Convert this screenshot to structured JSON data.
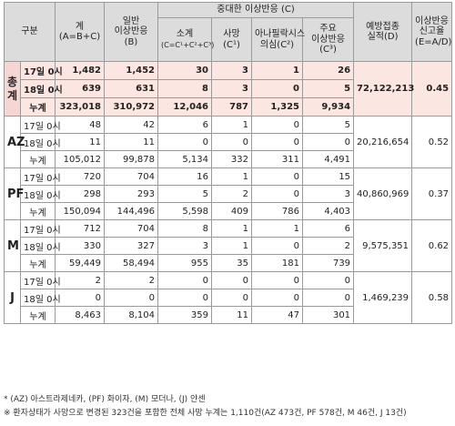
{
  "header": {
    "category": "구분",
    "total_label": "계",
    "total_formula": "(A=B+C)",
    "general_label": "일반",
    "general_label2": "이상반응",
    "general_code": "(B)",
    "serious_label": "중대한 이상반응 (C)",
    "subtotal": "소계",
    "subtotal_formula": "(C=C¹+C²+C³)",
    "death": "사망",
    "death_code": "(C¹)",
    "anaphylaxis": "아나필락시스",
    "anaphylaxis2": "의심(C²)",
    "major": "주요",
    "major2": "이상반응",
    "major_code": "(C³)",
    "vaccinated": "예방접종",
    "vaccinated2": "실적(D)",
    "rate": "이상반응",
    "rate2": "신고율",
    "rate_formula": "(E=A/D)"
  },
  "row_labels": {
    "d17": "17일 0시",
    "d18": "18일 0시",
    "cum": "누계"
  },
  "groups": [
    {
      "name": "총계",
      "vaccinated": "72,122,213",
      "rate": "0.45",
      "rows": [
        [
          "1,482",
          "1,452",
          "30",
          "3",
          "1",
          "26"
        ],
        [
          "639",
          "631",
          "8",
          "3",
          "0",
          "5"
        ],
        [
          "323,018",
          "310,972",
          "12,046",
          "787",
          "1,325",
          "9,934"
        ]
      ]
    },
    {
      "name": "AZ",
      "vaccinated": "20,216,654",
      "rate": "0.52",
      "rows": [
        [
          "48",
          "42",
          "6",
          "1",
          "0",
          "5"
        ],
        [
          "11",
          "11",
          "0",
          "0",
          "0",
          "0"
        ],
        [
          "105,012",
          "99,878",
          "5,134",
          "332",
          "311",
          "4,491"
        ]
      ]
    },
    {
      "name": "PF",
      "vaccinated": "40,860,969",
      "rate": "0.37",
      "rows": [
        [
          "720",
          "704",
          "16",
          "1",
          "0",
          "15"
        ],
        [
          "298",
          "293",
          "5",
          "2",
          "0",
          "3"
        ],
        [
          "150,094",
          "144,496",
          "5,598",
          "409",
          "786",
          "4,403"
        ]
      ]
    },
    {
      "name": "M",
      "vaccinated": "9,575,351",
      "rate": "0.62",
      "rows": [
        [
          "712",
          "704",
          "8",
          "1",
          "1",
          "6"
        ],
        [
          "330",
          "327",
          "3",
          "1",
          "0",
          "2"
        ],
        [
          "59,449",
          "58,494",
          "955",
          "35",
          "181",
          "739"
        ]
      ]
    },
    {
      "name": "J",
      "vaccinated": "1,469,239",
      "rate": "0.58",
      "rows": [
        [
          "2",
          "2",
          "0",
          "0",
          "0",
          "0"
        ],
        [
          "0",
          "0",
          "0",
          "0",
          "0",
          "0"
        ],
        [
          "8,463",
          "8,104",
          "359",
          "11",
          "47",
          "301"
        ]
      ]
    }
  ],
  "notes": [
    "* (AZ) 아스트라제네카, (PF) 화이자, (M) 모더나, (J) 얀센",
    "※ 환자상태가 사망으로 변경된 323건을 포함한 전체 사망 누계는 1,110건(AZ 473건, PF 578건, M 46건, J 13건)"
  ]
}
